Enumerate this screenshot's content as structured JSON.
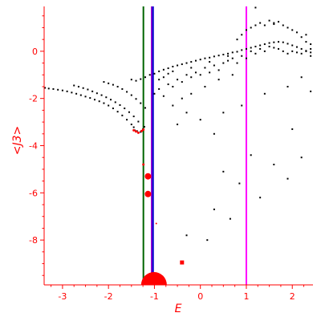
{
  "chart_data": {
    "type": "scatter",
    "xlabel": "E",
    "ylabel": "<J3>",
    "xlim": [
      -3.4,
      2.45
    ],
    "ylim": [
      -9.9,
      1.9
    ],
    "xticks": [
      "-3",
      "-2",
      "-1",
      "0",
      "1",
      "2"
    ],
    "yticks": [
      "0",
      "-2",
      "-4",
      "-6",
      "-8"
    ],
    "grid": false,
    "colors": {
      "axis": "#ff0000",
      "points": "#000000",
      "highlight": "#ff0000",
      "line_green": "#006400",
      "line_blue": "#0000cd",
      "line_purple": "#9400d3",
      "line_magenta": "#ff00ff"
    },
    "vertical_lines": [
      {
        "x": -1.24,
        "color": "#006400"
      },
      {
        "x": -1.06,
        "color": "#9400d3"
      },
      {
        "x": -1.03,
        "color": "#0000cd"
      },
      {
        "x": 1.0,
        "color": "#ff00ff"
      }
    ],
    "series": [
      {
        "style": "black-points",
        "points": [
          [
            -3.38,
            -1.55
          ],
          [
            -3.3,
            -1.58
          ],
          [
            -3.2,
            -1.6
          ],
          [
            -3.1,
            -1.63
          ],
          [
            -3.0,
            -1.66
          ],
          [
            -2.9,
            -1.7
          ],
          [
            -2.8,
            -1.75
          ],
          [
            -2.7,
            -1.8
          ],
          [
            -2.6,
            -1.86
          ],
          [
            -2.5,
            -1.92
          ],
          [
            -2.4,
            -1.98
          ],
          [
            -2.3,
            -2.05
          ],
          [
            -2.2,
            -2.12
          ],
          [
            -2.1,
            -2.2
          ],
          [
            -2.0,
            -2.3
          ],
          [
            -1.9,
            -2.42
          ],
          [
            -1.8,
            -2.56
          ],
          [
            -1.7,
            -2.72
          ],
          [
            -1.6,
            -2.9
          ],
          [
            -1.5,
            -3.1
          ],
          [
            -1.45,
            -3.22
          ],
          [
            -2.75,
            -1.45
          ],
          [
            -2.65,
            -1.5
          ],
          [
            -2.55,
            -1.56
          ],
          [
            -2.45,
            -1.62
          ],
          [
            -2.35,
            -1.7
          ],
          [
            -2.25,
            -1.78
          ],
          [
            -2.15,
            -1.86
          ],
          [
            -2.05,
            -1.95
          ],
          [
            -1.95,
            -2.05
          ],
          [
            -1.85,
            -2.16
          ],
          [
            -1.75,
            -2.28
          ],
          [
            -1.65,
            -2.42
          ],
          [
            -1.55,
            -2.58
          ],
          [
            -1.45,
            -2.76
          ],
          [
            -1.35,
            -2.98
          ],
          [
            -2.1,
            -1.3
          ],
          [
            -2.0,
            -1.36
          ],
          [
            -1.9,
            -1.42
          ],
          [
            -1.8,
            -1.5
          ],
          [
            -1.7,
            -1.6
          ],
          [
            -1.6,
            -1.72
          ],
          [
            -1.5,
            -1.86
          ],
          [
            -1.4,
            -2.02
          ],
          [
            -1.3,
            -2.2
          ],
          [
            -1.2,
            -2.4
          ],
          [
            -1.5,
            -1.2
          ],
          [
            -1.4,
            -1.25
          ],
          [
            -1.3,
            -1.18
          ],
          [
            -1.2,
            -1.1
          ],
          [
            -1.1,
            -1.0
          ],
          [
            -1.0,
            -0.95
          ],
          [
            -0.9,
            -0.85
          ],
          [
            -0.8,
            -0.78
          ],
          [
            -0.7,
            -0.72
          ],
          [
            -0.6,
            -0.65
          ],
          [
            -0.5,
            -0.6
          ],
          [
            -0.4,
            -0.55
          ],
          [
            -0.3,
            -0.5
          ],
          [
            -0.2,
            -0.45
          ],
          [
            -0.1,
            -0.4
          ],
          [
            0.0,
            -0.35
          ],
          [
            0.1,
            -0.3
          ],
          [
            0.2,
            -0.27
          ],
          [
            0.3,
            -0.22
          ],
          [
            0.4,
            -0.18
          ],
          [
            0.5,
            -0.14
          ],
          [
            0.6,
            -0.1
          ],
          [
            0.7,
            -0.05
          ],
          [
            0.8,
            -0.02
          ],
          [
            0.9,
            0.05
          ],
          [
            1.0,
            0.1
          ],
          [
            1.1,
            0.15
          ],
          [
            1.2,
            0.2
          ],
          [
            1.3,
            0.25
          ],
          [
            1.4,
            0.3
          ],
          [
            1.5,
            0.35
          ],
          [
            1.6,
            0.38
          ],
          [
            1.7,
            0.4
          ],
          [
            1.8,
            0.38
          ],
          [
            1.9,
            0.32
          ],
          [
            2.0,
            0.25
          ],
          [
            2.1,
            0.18
          ],
          [
            2.2,
            0.1
          ],
          [
            2.3,
            0.02
          ],
          [
            2.4,
            -0.05
          ],
          [
            -1.0,
            -1.8
          ],
          [
            -0.9,
            -1.6
          ],
          [
            -0.8,
            -1.9
          ],
          [
            -0.7,
            -1.4
          ],
          [
            -0.6,
            -1.5
          ],
          [
            -0.5,
            -1.2
          ],
          [
            -0.4,
            -1.3
          ],
          [
            -0.3,
            -1.0
          ],
          [
            -0.2,
            -1.1
          ],
          [
            -0.1,
            -0.9
          ],
          [
            0.0,
            -1.0
          ],
          [
            0.1,
            -0.7
          ],
          [
            0.2,
            -0.9
          ],
          [
            0.3,
            -0.6
          ],
          [
            0.4,
            -0.8
          ],
          [
            0.5,
            -0.5
          ],
          [
            0.6,
            -0.4
          ],
          [
            0.7,
            -0.3
          ],
          [
            0.8,
            -0.5
          ],
          [
            0.9,
            -0.2
          ],
          [
            1.0,
            -0.3
          ],
          [
            1.1,
            0.0
          ],
          [
            1.2,
            -0.1
          ],
          [
            1.3,
            0.1
          ],
          [
            1.4,
            0.0
          ],
          [
            1.5,
            0.2
          ],
          [
            1.6,
            0.15
          ],
          [
            1.7,
            0.1
          ],
          [
            1.8,
            0.0
          ],
          [
            1.9,
            -0.1
          ],
          [
            2.0,
            0.0
          ],
          [
            2.1,
            -0.05
          ],
          [
            2.2,
            -0.1
          ],
          [
            2.3,
            0.0
          ],
          [
            2.4,
            0.1
          ],
          [
            0.8,
            0.5
          ],
          [
            0.9,
            0.7
          ],
          [
            1.0,
            0.9
          ],
          [
            1.1,
            1.0
          ],
          [
            1.2,
            1.1
          ],
          [
            1.3,
            1.2
          ],
          [
            1.4,
            1.1
          ],
          [
            1.5,
            1.3
          ],
          [
            1.6,
            1.15
          ],
          [
            1.7,
            1.25
          ],
          [
            1.8,
            1.1
          ],
          [
            1.9,
            1.0
          ],
          [
            2.0,
            0.9
          ],
          [
            2.1,
            0.8
          ],
          [
            2.2,
            0.6
          ],
          [
            2.3,
            0.4
          ],
          [
            2.4,
            0.3
          ],
          [
            1.2,
            1.85
          ],
          [
            1.6,
            1.2
          ],
          [
            2.3,
            0.7
          ],
          [
            2.4,
            -0.2
          ],
          [
            -0.9,
            -1.2
          ],
          [
            -0.8,
            -1.1
          ],
          [
            -0.7,
            -0.95
          ],
          [
            -0.6,
            -0.85
          ],
          [
            -0.2,
            -0.7
          ],
          [
            0.2,
            -0.45
          ],
          [
            0.6,
            -0.2
          ],
          [
            -0.6,
            -2.3
          ],
          [
            -0.4,
            -2.0
          ],
          [
            -0.2,
            -1.8
          ],
          [
            0.1,
            -1.5
          ],
          [
            0.4,
            -1.2
          ],
          [
            0.7,
            -1.0
          ],
          [
            -0.3,
            -2.6
          ],
          [
            0.0,
            -2.9
          ],
          [
            0.5,
            -2.6
          ],
          [
            0.9,
            -2.3
          ],
          [
            1.4,
            -1.8
          ],
          [
            1.9,
            -1.5
          ],
          [
            2.2,
            -1.1
          ],
          [
            2.4,
            -1.7
          ],
          [
            -0.5,
            -3.1
          ],
          [
            0.3,
            -3.5
          ],
          [
            1.1,
            -4.4
          ],
          [
            2.0,
            -3.3
          ],
          [
            2.2,
            -4.5
          ],
          [
            1.6,
            -4.8
          ],
          [
            1.9,
            -5.4
          ],
          [
            0.5,
            -5.1
          ],
          [
            0.85,
            -5.6
          ],
          [
            1.3,
            -6.2
          ],
          [
            0.3,
            -6.7
          ],
          [
            0.65,
            -7.1
          ],
          [
            -0.3,
            -7.8
          ],
          [
            0.15,
            -8.0
          ],
          [
            -1.43,
            -3.35
          ],
          [
            -1.38,
            -3.38
          ],
          [
            -1.3,
            -3.42
          ],
          [
            -1.25,
            -3.3
          ],
          [
            -1.22,
            -3.2
          ]
        ]
      },
      {
        "style": "red-points",
        "points": [
          [
            -1.45,
            -3.35
          ],
          [
            -1.4,
            -3.4
          ],
          [
            -1.35,
            -3.45
          ],
          [
            -1.28,
            -3.38
          ],
          [
            -1.24,
            -3.32
          ]
        ]
      },
      {
        "style": "red-markers",
        "points": [
          [
            -1.24,
            -4.8
          ],
          [
            -1.14,
            -5.3
          ],
          [
            -1.14,
            -6.05
          ],
          [
            -0.4,
            -8.95
          ],
          [
            -0.96,
            -7.3
          ],
          [
            -1.01,
            -9.85
          ]
        ],
        "sizes": [
          1.5,
          4,
          4,
          2.5,
          1,
          16
        ]
      }
    ]
  }
}
